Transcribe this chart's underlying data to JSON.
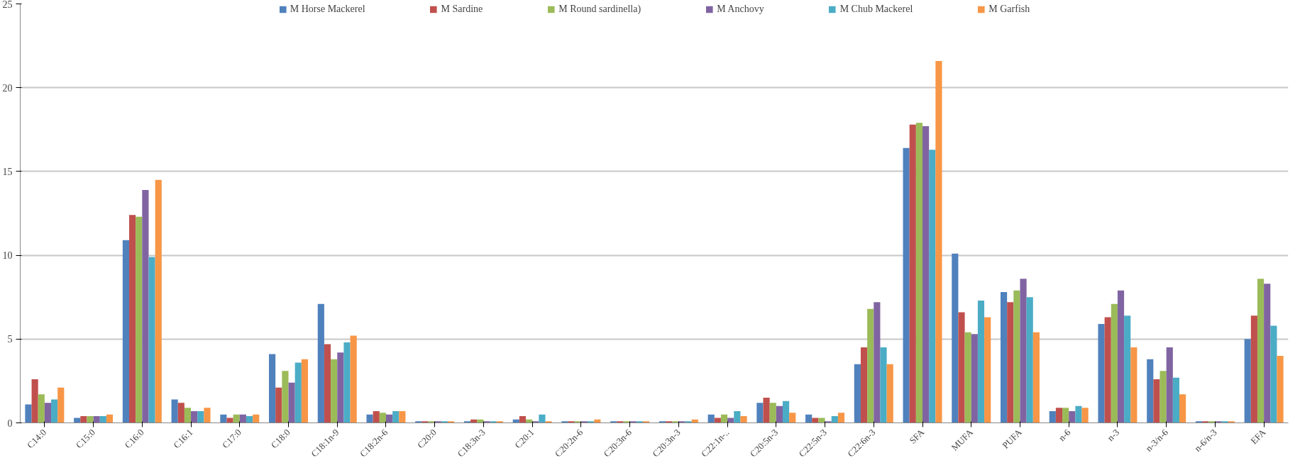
{
  "chart_data": {
    "type": "bar",
    "categories": [
      "C14:0",
      "C15:0",
      "C16:0",
      "C16:1",
      "C17:0",
      "C18:0",
      "C18:1n-9",
      "C18:2n-6",
      "C20:0",
      "C18:3n-3",
      "C20:1",
      "C20:2n-6",
      "C20:3n-6",
      "C20:3n-3",
      "C22:1n-..",
      "C20:5n-3",
      "C22:5n-3",
      "C22:6n-3",
      "SFA",
      "MUFA",
      "PUFA",
      "n-6",
      "n-3",
      "n-3/n-6",
      "n-6/n-3",
      "EFA"
    ],
    "series": [
      {
        "name": "M Horse Mackerel",
        "color": "#4f81bd",
        "values": [
          1.1,
          0.3,
          10.9,
          1.4,
          0.5,
          4.1,
          7.1,
          0.5,
          0.1,
          0.1,
          0.2,
          0.1,
          0.1,
          0.1,
          0.5,
          1.2,
          0.5,
          3.5,
          16.4,
          10.1,
          7.8,
          0.7,
          5.9,
          3.8,
          0.1,
          5.0
        ]
      },
      {
        "name": "M Sardine",
        "color": "#c0504d",
        "values": [
          2.6,
          0.4,
          12.4,
          1.2,
          0.3,
          2.1,
          4.7,
          0.7,
          0.1,
          0.2,
          0.4,
          0.1,
          0.1,
          0.1,
          0.3,
          1.5,
          0.3,
          4.5,
          17.8,
          6.6,
          7.2,
          0.9,
          6.3,
          2.6,
          0.1,
          6.4
        ]
      },
      {
        "name": "M Round sardinella)",
        "color": "#9bbb59",
        "values": [
          1.7,
          0.4,
          12.3,
          0.9,
          0.5,
          3.1,
          3.8,
          0.6,
          0.1,
          0.2,
          0.2,
          0.1,
          0.1,
          0.1,
          0.5,
          1.2,
          0.3,
          6.8,
          17.9,
          5.4,
          7.9,
          0.9,
          7.1,
          3.1,
          0.1,
          8.6
        ]
      },
      {
        "name": "M Anchovy",
        "color": "#8064a2",
        "values": [
          1.2,
          0.4,
          13.9,
          0.7,
          0.5,
          2.4,
          4.2,
          0.5,
          0.1,
          0.1,
          0.1,
          0.1,
          0.1,
          0.1,
          0.3,
          1.0,
          0.1,
          7.2,
          17.7,
          5.3,
          8.6,
          0.7,
          7.9,
          4.5,
          0.1,
          8.3
        ]
      },
      {
        "name": "M Chub Mackerel",
        "color": "#4bacc6",
        "values": [
          1.4,
          0.4,
          9.9,
          0.7,
          0.4,
          3.6,
          4.8,
          0.7,
          0.1,
          0.1,
          0.5,
          0.1,
          0.1,
          0.1,
          0.7,
          1.3,
          0.4,
          4.5,
          16.3,
          7.3,
          7.5,
          1.0,
          6.4,
          2.7,
          0.1,
          5.8
        ]
      },
      {
        "name": "M Garfish",
        "color": "#f79646",
        "values": [
          2.1,
          0.5,
          14.5,
          0.9,
          0.5,
          3.8,
          5.2,
          0.7,
          0.1,
          0.1,
          0.1,
          0.2,
          0.1,
          0.2,
          0.4,
          0.6,
          0.6,
          3.5,
          21.6,
          6.3,
          5.4,
          0.9,
          4.5,
          1.7,
          0.1,
          4.0
        ]
      }
    ],
    "ylim": [
      0,
      25
    ],
    "yticks": [
      0,
      5,
      10,
      15,
      20,
      25
    ],
    "grid": "y",
    "legend": "top"
  }
}
